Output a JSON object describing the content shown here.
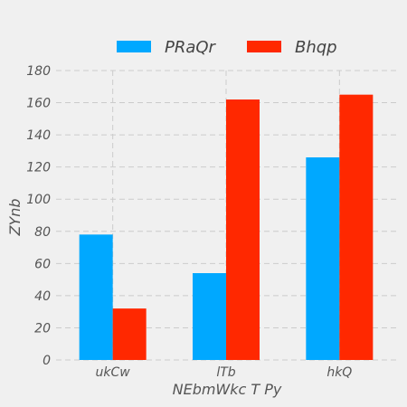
{
  "chart_data": {
    "type": "bar",
    "categories": [
      "ukCw",
      "lTb",
      "hkQ"
    ],
    "series": [
      {
        "name": "PRaQr",
        "values": [
          78,
          54,
          126
        ],
        "color": "#00a8ff"
      },
      {
        "name": "Bhqp",
        "values": [
          32,
          162,
          165
        ],
        "color": "#ff2800"
      }
    ],
    "xlabel": "NEbmWkc T Py",
    "ylabel": "ZYnb",
    "ylim": [
      0,
      180
    ],
    "yticks": [
      0,
      20,
      40,
      60,
      80,
      100,
      120,
      140,
      160,
      180
    ],
    "grid": true,
    "legend_position": "top"
  }
}
